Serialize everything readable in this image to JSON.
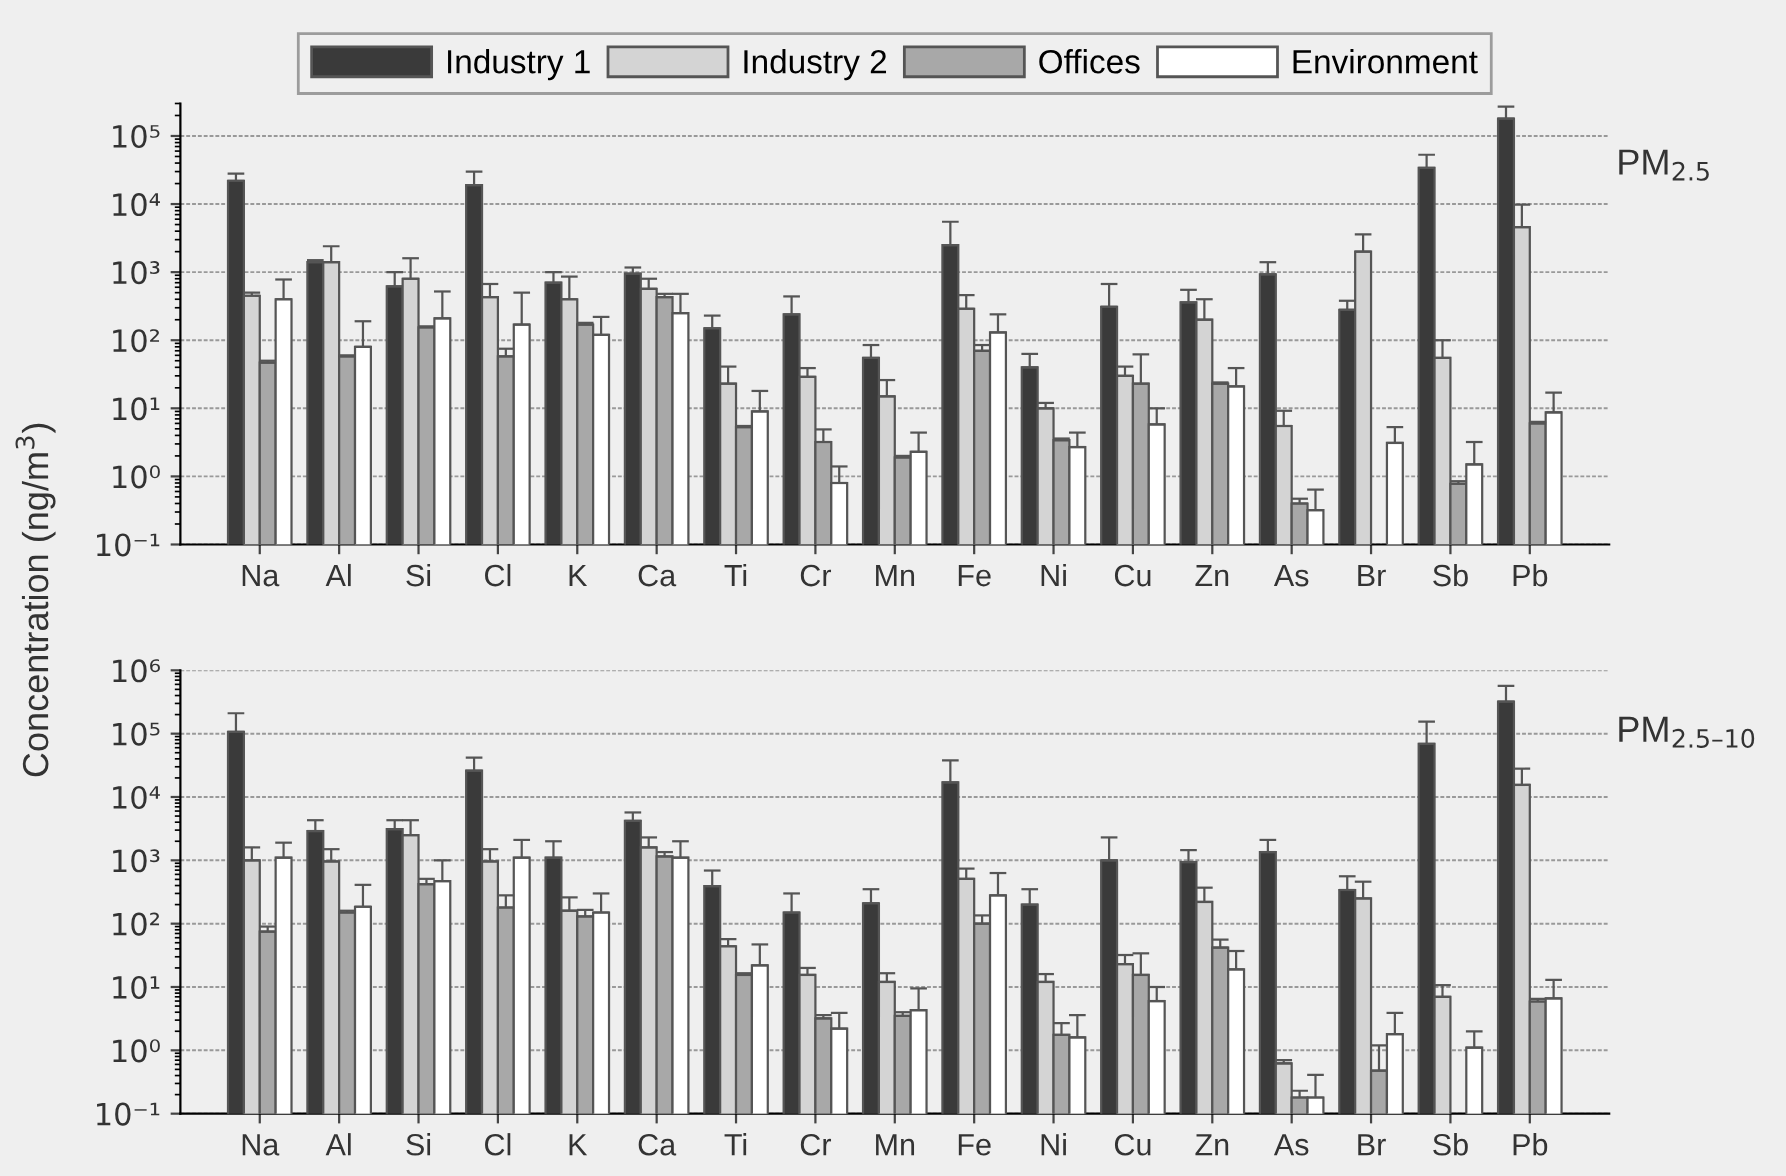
{
  "chart_data": [
    {
      "type": "bar",
      "title": "PM$_{2.5}$",
      "ylabel": "Concentration (ng/m$^{3}$)",
      "log": true,
      "grid": "y",
      "legend": "top",
      "categories": [
        "Na",
        "Al",
        "Si",
        "Cl",
        "K",
        "Ca",
        "Ti",
        "Cr",
        "Mn",
        "Fe",
        "Ni",
        "Cu",
        "Zn",
        "As",
        "Br",
        "Sb",
        "Pb"
      ],
      "ylim": [
        0.1,
        300000
      ],
      "yticks": [
        {
          "value": 0.1,
          "label": "10⁻¹"
        },
        {
          "value": 1,
          "label": "10⁰"
        },
        {
          "value": 10,
          "label": "10¹"
        },
        {
          "value": 100,
          "label": "10²"
        },
        {
          "value": 1000,
          "label": "10³"
        },
        {
          "value": 10000,
          "label": "10⁴"
        },
        {
          "value": 100000,
          "label": "10⁵"
        }
      ],
      "series": [
        {
          "name": "Industry 1",
          "color": "#3a3a3a",
          "values": [
            22000,
            1400,
            620,
            19000,
            700,
            950,
            150,
            240,
            55,
            2500,
            40,
            310,
            360,
            930,
            280,
            34000,
            180000
          ],
          "errors": [
            [
              22000,
              28000
            ],
            [
              1400,
              1500
            ],
            [
              620,
              1000
            ],
            [
              19000,
              30000
            ],
            [
              700,
              1000
            ],
            [
              950,
              1170
            ],
            [
              150,
              230
            ],
            [
              240,
              440
            ],
            [
              55,
              85
            ],
            [
              2500,
              5500
            ],
            [
              40,
              63
            ],
            [
              310,
              670
            ],
            [
              360,
              550
            ],
            [
              930,
              1400
            ],
            [
              280,
              380
            ],
            [
              34000,
              53000
            ],
            [
              180000,
              270000
            ]
          ]
        },
        {
          "name": "Industry 2",
          "color": "#d4d4d4",
          "values": [
            450,
            1400,
            800,
            430,
            400,
            570,
            23,
            29,
            15,
            290,
            10,
            30,
            200,
            5.5,
            2000,
            55,
            4600
          ],
          "errors": [
            [
              450,
              500
            ],
            [
              1400,
              2400
            ],
            [
              800,
              1600
            ],
            [
              430,
              670
            ],
            [
              400,
              860
            ],
            [
              570,
              800
            ],
            [
              23,
              41
            ],
            [
              29,
              39
            ],
            [
              15,
              26
            ],
            [
              290,
              460
            ],
            [
              10,
              12
            ],
            [
              30,
              41
            ],
            [
              200,
              400
            ],
            [
              5.5,
              9.2
            ],
            [
              2000,
              3600
            ],
            [
              55,
              100
            ],
            [
              4600,
              9800
            ]
          ]
        },
        {
          "name": "Offices",
          "color": "#a8a8a8",
          "values": [
            47,
            58,
            155,
            58,
            170,
            430,
            5.3,
            3.2,
            1.9,
            70,
            3.4,
            23,
            23,
            0.4,
            null,
            0.78,
            6
          ],
          "errors": [
            [
              47,
              50
            ],
            [
              58,
              60
            ],
            [
              155,
              160
            ],
            [
              58,
              75
            ],
            [
              170,
              180
            ],
            [
              430,
              480
            ],
            [
              5.3,
              5.5
            ],
            [
              3.2,
              4.9
            ],
            [
              1.9,
              2.0
            ],
            [
              70,
              85
            ],
            [
              3.4,
              3.6
            ],
            [
              23,
              62
            ],
            [
              23,
              24
            ],
            [
              0.4,
              0.47
            ],
            null,
            [
              0.78,
              0.85
            ],
            [
              6,
              6.3
            ]
          ]
        },
        {
          "name": "Environment",
          "color": "#ffffff",
          "values": [
            400,
            80,
            210,
            170,
            120,
            250,
            9,
            0.8,
            2.3,
            130,
            2.7,
            5.8,
            21,
            0.32,
            3.1,
            1.5,
            8.7
          ],
          "errors": [
            [
              400,
              780
            ],
            [
              80,
              190
            ],
            [
              210,
              520
            ],
            [
              170,
              500
            ],
            [
              120,
              220
            ],
            [
              250,
              480
            ],
            [
              9,
              18
            ],
            [
              0.8,
              1.4
            ],
            [
              2.3,
              4.4
            ],
            [
              130,
              240
            ],
            [
              2.7,
              4.4
            ],
            [
              5.8,
              10
            ],
            [
              21,
              39
            ],
            [
              0.32,
              0.64
            ],
            [
              3.1,
              5.3
            ],
            [
              1.5,
              3.2
            ],
            [
              8.7,
              17
            ]
          ]
        }
      ]
    },
    {
      "type": "bar",
      "title": "PM$_{2.5–10}$",
      "log": true,
      "grid": "y",
      "categories": [
        "Na",
        "Al",
        "Si",
        "Cl",
        "K",
        "Ca",
        "Ti",
        "Cr",
        "Mn",
        "Fe",
        "Ni",
        "Cu",
        "Zn",
        "As",
        "Br",
        "Sb",
        "Pb"
      ],
      "ylim": [
        0.1,
        1000000
      ],
      "yticks": [
        {
          "value": 0.1,
          "label": "10⁻¹"
        },
        {
          "value": 1,
          "label": "10⁰"
        },
        {
          "value": 10,
          "label": "10¹"
        },
        {
          "value": 100,
          "label": "10²"
        },
        {
          "value": 1000,
          "label": "10³"
        },
        {
          "value": 10000,
          "label": "10⁴"
        },
        {
          "value": 100000,
          "label": "10⁵"
        },
        {
          "value": 1000000,
          "label": "10⁶"
        }
      ],
      "series": [
        {
          "color": "#3a3a3a",
          "values": [
            107000,
            2900,
            3100,
            26000,
            1100,
            4200,
            390,
            150,
            210,
            17000,
            200,
            1000,
            940,
            1350,
            340,
            69000,
            320000
          ],
          "errors": [
            [
              107000,
              210000
            ],
            [
              2900,
              4300
            ],
            [
              3100,
              4300
            ],
            [
              26000,
              42000
            ],
            [
              1100,
              2000
            ],
            [
              4200,
              5700
            ],
            [
              390,
              690
            ],
            [
              150,
              300
            ],
            [
              210,
              350
            ],
            [
              17000,
              38000
            ],
            [
              200,
              350
            ],
            [
              1000,
              2300
            ],
            [
              940,
              1450
            ],
            [
              1350,
              2100
            ],
            [
              340,
              560
            ],
            [
              69000,
              155000
            ],
            [
              320000,
              570000
            ]
          ]
        },
        {
          "color": "#d4d4d4",
          "values": [
            1000,
            960,
            2500,
            960,
            160,
            1600,
            44,
            15.5,
            12,
            510,
            12,
            23,
            220,
            0.62,
            250,
            7,
            15500
          ],
          "errors": [
            [
              1000,
              1600
            ],
            [
              960,
              1500
            ],
            [
              2500,
              4300
            ],
            [
              960,
              1500
            ],
            [
              160,
              260
            ],
            [
              1600,
              2300
            ],
            [
              44,
              57
            ],
            [
              15.5,
              20
            ],
            [
              12,
              16.5
            ],
            [
              510,
              740
            ],
            [
              12,
              16
            ],
            [
              23,
              32
            ],
            [
              220,
              370
            ],
            [
              0.62,
              0.7
            ],
            [
              250,
              460
            ],
            [
              7,
              10.7
            ],
            [
              15500,
              28000
            ]
          ]
        },
        {
          "color": "#a8a8a8",
          "values": [
            75,
            150,
            420,
            180,
            130,
            1150,
            15.5,
            3.2,
            3.5,
            100,
            1.75,
            15.5,
            42,
            0.18,
            0.48,
            null,
            5.9
          ],
          "errors": [
            [
              75,
              90
            ],
            [
              150,
              160
            ],
            [
              420,
              510
            ],
            [
              180,
              280
            ],
            [
              130,
              165
            ],
            [
              1150,
              1350
            ],
            [
              15.5,
              16.5
            ],
            [
              3.2,
              3.6
            ],
            [
              3.5,
              4
            ],
            [
              100,
              135
            ],
            [
              1.75,
              2.7
            ],
            [
              15.5,
              34
            ],
            [
              42,
              56
            ],
            [
              0.18,
              0.23
            ],
            [
              0.48,
              1.2
            ],
            null,
            [
              5.9,
              6.5
            ]
          ]
        },
        {
          "color": "#ffffff",
          "values": [
            1100,
            185,
            470,
            1100,
            150,
            1100,
            22,
            2.2,
            4.3,
            280,
            1.6,
            6,
            19,
            0.18,
            1.8,
            1.1,
            6.6
          ],
          "errors": [
            [
              1100,
              1900
            ],
            [
              185,
              410
            ],
            [
              470,
              1000
            ],
            [
              1100,
              2100
            ],
            [
              150,
              300
            ],
            [
              1100,
              2000
            ],
            [
              22,
              47
            ],
            [
              2.2,
              3.9
            ],
            [
              4.3,
              9.5
            ],
            [
              280,
              630
            ],
            [
              1.6,
              3.6
            ],
            [
              6,
              10
            ],
            [
              19,
              37
            ],
            [
              0.18,
              0.41
            ],
            [
              1.8,
              3.9
            ],
            [
              1.1,
              2
            ],
            [
              6.6,
              13
            ]
          ]
        }
      ]
    }
  ]
}
